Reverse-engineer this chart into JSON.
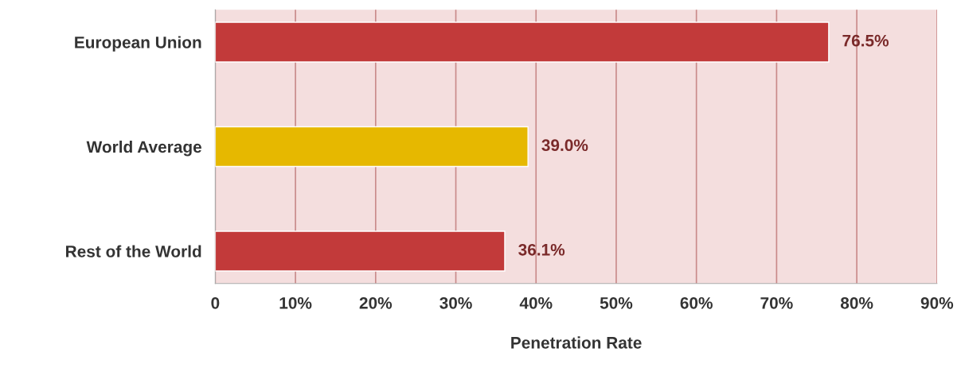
{
  "chart_data": {
    "type": "bar",
    "orientation": "horizontal",
    "xlabel": "Penetration Rate",
    "categories": [
      "European Union",
      "World Average",
      "Rest of the World"
    ],
    "values": [
      76.5,
      39.0,
      36.1
    ],
    "colors": [
      "#c23a3a",
      "#e6b800",
      "#c23a3a"
    ],
    "value_labels": [
      "76.5%",
      "39.0%",
      "36.1%"
    ],
    "xlim": [
      0,
      90
    ],
    "xticks": [
      0,
      {
        "value": 10,
        "label": "10%"
      },
      {
        "value": 20,
        "label": "20%"
      },
      {
        "value": 30,
        "label": "30%"
      },
      {
        "value": 40,
        "label": "40%"
      },
      {
        "value": 50,
        "label": "50%"
      },
      {
        "value": 60,
        "label": "60%"
      },
      {
        "value": 70,
        "label": "70%"
      },
      {
        "value": 80,
        "label": "80%"
      },
      {
        "value": 90,
        "label": "90%"
      }
    ],
    "grid": "x"
  }
}
